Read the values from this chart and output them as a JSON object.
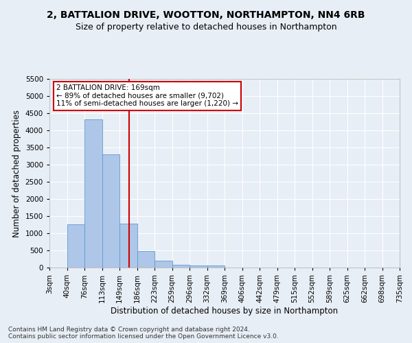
{
  "title1": "2, BATTALION DRIVE, WOOTTON, NORTHAMPTON, NN4 6RB",
  "title2": "Size of property relative to detached houses in Northampton",
  "xlabel": "Distribution of detached houses by size in Northampton",
  "ylabel": "Number of detached properties",
  "footer1": "Contains HM Land Registry data © Crown copyright and database right 2024.",
  "footer2": "Contains public sector information licensed under the Open Government Licence v3.0.",
  "bin_labels": [
    "3sqm",
    "40sqm",
    "76sqm",
    "113sqm",
    "149sqm",
    "186sqm",
    "223sqm",
    "259sqm",
    "296sqm",
    "332sqm",
    "369sqm",
    "406sqm",
    "442sqm",
    "479sqm",
    "515sqm",
    "552sqm",
    "589sqm",
    "625sqm",
    "662sqm",
    "698sqm",
    "735sqm"
  ],
  "bar_heights": [
    0,
    1270,
    4330,
    3300,
    1290,
    480,
    210,
    90,
    60,
    55,
    0,
    0,
    0,
    0,
    0,
    0,
    0,
    0,
    0,
    0
  ],
  "bar_color": "#aec6e8",
  "bar_edgecolor": "#5b9bd5",
  "vline_x": 4.55,
  "vline_color": "#cc0000",
  "annotation_line1": "2 BATTALION DRIVE: 169sqm",
  "annotation_line2": "← 89% of detached houses are smaller (9,702)",
  "annotation_line3": "11% of semi-detached houses are larger (1,220) →",
  "annotation_box_edgecolor": "#cc0000",
  "ylim": [
    0,
    5500
  ],
  "yticks": [
    0,
    500,
    1000,
    1500,
    2000,
    2500,
    3000,
    3500,
    4000,
    4500,
    5000,
    5500
  ],
  "background_color": "#e8eef5",
  "axes_background": "#e8eef5",
  "grid_color": "#ffffff",
  "title1_fontsize": 10,
  "title2_fontsize": 9,
  "xlabel_fontsize": 8.5,
  "ylabel_fontsize": 8.5,
  "tick_fontsize": 7.5,
  "annotation_fontsize": 7.5,
  "footer_fontsize": 6.5
}
